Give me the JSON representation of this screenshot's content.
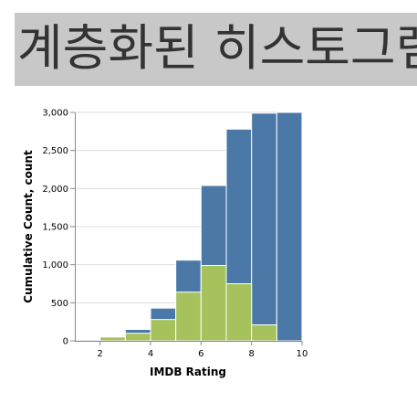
{
  "header": {
    "title": "계층화된 히스토그램"
  },
  "chart_data": {
    "type": "bar",
    "subtype": "layered-histogram",
    "xlabel": "IMDB Rating",
    "ylabel": "Cumulative Count, count",
    "xlim": [
      1,
      10
    ],
    "ylim": [
      0,
      3000
    ],
    "x_ticks": [
      "2",
      "4",
      "6",
      "8",
      "10"
    ],
    "y_ticks": [
      "0",
      "500",
      "1,000",
      "1,500",
      "2,000",
      "2,500",
      "3,000"
    ],
    "grid": true,
    "bins": [
      [
        2,
        3
      ],
      [
        3,
        4
      ],
      [
        4,
        5
      ],
      [
        5,
        6
      ],
      [
        6,
        7
      ],
      [
        7,
        8
      ],
      [
        8,
        9
      ],
      [
        9,
        10
      ]
    ],
    "series": [
      {
        "values": [
          50,
          150,
          430,
          1060,
          2040,
          2780,
          2990,
          3000
        ],
        "color": "#4c78a8"
      },
      {
        "values": [
          50,
          100,
          280,
          640,
          990,
          750,
          210,
          0
        ],
        "color": "#a5c25c"
      }
    ]
  }
}
